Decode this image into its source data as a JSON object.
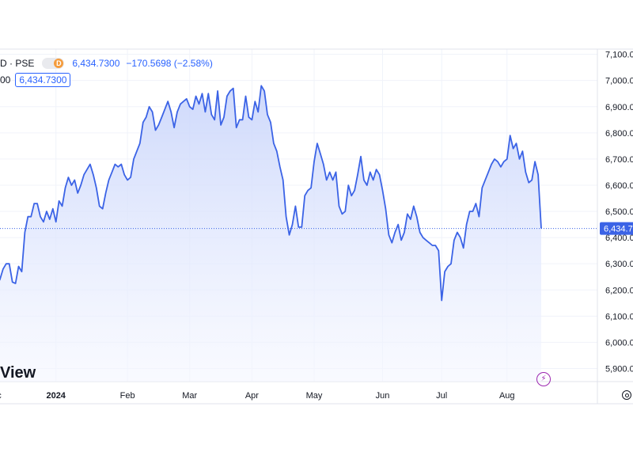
{
  "legend": {
    "symbol": "D · PSE",
    "badge": "D",
    "last_value": "6,434.7300",
    "change": "−170.5698 (−2.58%)"
  },
  "subline": {
    "prefix": "00",
    "value": "6,434.7300"
  },
  "price_tag": "6,434.7",
  "watermark": "View",
  "icons": {
    "flash": "lightning-icon",
    "settings": "gear-icon"
  },
  "colors": {
    "line": "#3b63e6",
    "fill_top": "#c9d5fb",
    "fill_bottom": "#f5f7ff",
    "badge": "#f59b3b",
    "flash": "#9c27b0"
  },
  "chart_data": {
    "type": "area",
    "ylim": [
      5850,
      7120
    ],
    "ytick_labels": [
      "7,100.000",
      "7,000.000",
      "6,900.000",
      "6,800.000",
      "6,700.000",
      "6,600.000",
      "6,500.000",
      "6,400.000",
      "6,300.000",
      "6,200.000",
      "6,100.000",
      "6,000.000",
      "5,900.000"
    ],
    "ytick_values": [
      7100,
      7000,
      6900,
      6800,
      6700,
      6600,
      6500,
      6400,
      6300,
      6200,
      6100,
      6000,
      5900
    ],
    "xtick_labels": [
      "ec",
      "2024",
      "Feb",
      "Mar",
      "Apr",
      "May",
      "Jun",
      "Jul",
      "Aug"
    ],
    "xtick_index": [
      0,
      19,
      42,
      62,
      82,
      102,
      124,
      143,
      164
    ],
    "last_value": 6434.73,
    "values": [
      6220,
      6240,
      6280,
      6300,
      6300,
      6230,
      6225,
      6290,
      6270,
      6420,
      6480,
      6480,
      6530,
      6530,
      6480,
      6460,
      6500,
      6470,
      6510,
      6460,
      6540,
      6520,
      6590,
      6630,
      6600,
      6620,
      6570,
      6600,
      6640,
      6660,
      6680,
      6640,
      6590,
      6520,
      6510,
      6570,
      6620,
      6650,
      6680,
      6670,
      6680,
      6640,
      6620,
      6630,
      6700,
      6730,
      6760,
      6840,
      6860,
      6900,
      6880,
      6810,
      6830,
      6860,
      6890,
      6920,
      6880,
      6820,
      6880,
      6910,
      6920,
      6930,
      6900,
      6890,
      6940,
      6910,
      6950,
      6880,
      6950,
      6870,
      6850,
      6960,
      6830,
      6860,
      6940,
      6960,
      6970,
      6820,
      6850,
      6850,
      6940,
      6860,
      6850,
      6920,
      6880,
      6980,
      6960,
      6870,
      6840,
      6760,
      6730,
      6670,
      6620,
      6480,
      6410,
      6450,
      6520,
      6440,
      6440,
      6560,
      6580,
      6590,
      6690,
      6760,
      6720,
      6680,
      6620,
      6650,
      6620,
      6650,
      6520,
      6490,
      6500,
      6600,
      6560,
      6580,
      6640,
      6710,
      6620,
      6600,
      6650,
      6620,
      6660,
      6640,
      6580,
      6510,
      6410,
      6380,
      6420,
      6450,
      6390,
      6420,
      6490,
      6470,
      6520,
      6480,
      6420,
      6400,
      6390,
      6380,
      6370,
      6370,
      6350,
      6160,
      6270,
      6290,
      6300,
      6390,
      6420,
      6400,
      6360,
      6450,
      6500,
      6500,
      6530,
      6480,
      6590,
      6620,
      6650,
      6680,
      6700,
      6690,
      6670,
      6690,
      6700,
      6790,
      6740,
      6760,
      6700,
      6730,
      6650,
      6610,
      6620,
      6690,
      6640,
      6434.73
    ]
  }
}
